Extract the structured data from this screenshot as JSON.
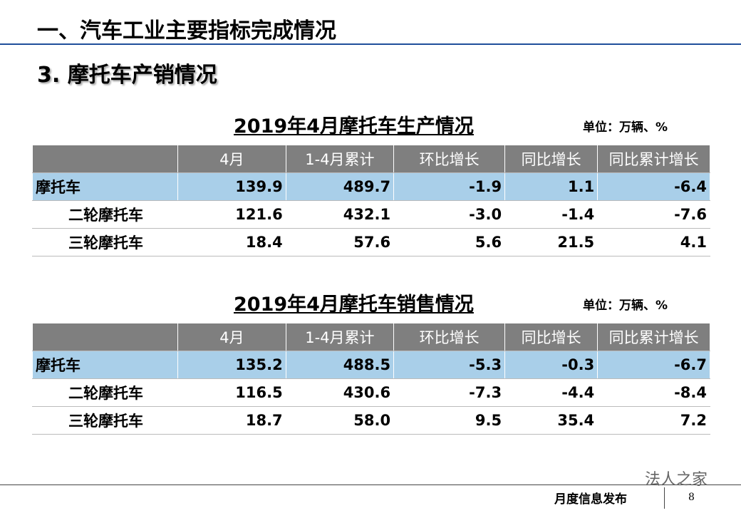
{
  "header": {
    "title": "一、汽车工业主要指标完成情况",
    "subtitle": "3. 摩托车产销情况"
  },
  "tables": [
    {
      "title": "2019年4月摩托车生产情况",
      "unit": "单位：万辆、%",
      "columns": [
        "",
        "4月",
        "1-4月累计",
        "环比增长",
        "同比增长",
        "同比累计增长"
      ],
      "rows": [
        [
          "摩托车",
          "139.9",
          "489.7",
          "-1.9",
          "1.1",
          "-6.4"
        ],
        [
          "二轮摩托车",
          "121.6",
          "432.1",
          "-3.0",
          "-1.4",
          "-7.6"
        ],
        [
          "三轮摩托车",
          "18.4",
          "57.6",
          "5.6",
          "21.5",
          "4.1"
        ]
      ]
    },
    {
      "title": "2019年4月摩托车销售情况",
      "unit": "单位：万辆、%",
      "columns": [
        "",
        "4月",
        "1-4月累计",
        "环比增长",
        "同比增长",
        "同比累计增长"
      ],
      "rows": [
        [
          "摩托车",
          "135.2",
          "488.5",
          "-5.3",
          "-0.3",
          "-6.7"
        ],
        [
          "二轮摩托车",
          "116.5",
          "430.6",
          "-7.3",
          "-4.4",
          "-8.4"
        ],
        [
          "三轮摩托车",
          "18.7",
          "58.0",
          "9.5",
          "35.4",
          "7.2"
        ]
      ]
    }
  ],
  "footer": {
    "watermark": "法人之家",
    "label": "月度信息发布",
    "page": "8"
  }
}
